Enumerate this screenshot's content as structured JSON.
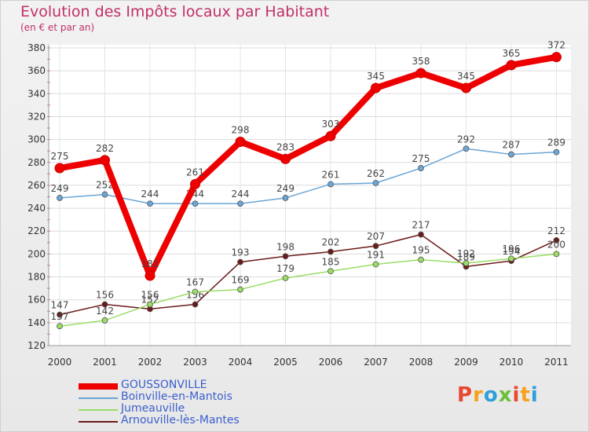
{
  "header": {
    "title": "Evolution des Impôts locaux par Habitant",
    "subtitle": "(en € et par an)"
  },
  "logo": {
    "text": "Proxiti",
    "colors": [
      "#e8482f",
      "#f7a11a",
      "#2e9fd9",
      "#6cbf3a",
      "#e8482f",
      "#f7a11a",
      "#2e9fd9"
    ]
  },
  "chart_data": {
    "type": "line",
    "title": "Evolution des Impôts locaux par Habitant",
    "subtitle": "(en € et par an)",
    "xlabel": "",
    "ylabel": "",
    "ylim": [
      120,
      380
    ],
    "y_ticks": [
      120,
      140,
      160,
      180,
      200,
      220,
      240,
      260,
      280,
      300,
      320,
      340,
      360,
      380
    ],
    "grid": true,
    "categories": [
      "2000",
      "2001",
      "2002",
      "2003",
      "2004",
      "2005",
      "2006",
      "2007",
      "2008",
      "2009",
      "2010",
      "2011"
    ],
    "series": [
      {
        "name": "Arnouville-lès-Mantes",
        "color": "#6b1a1a",
        "values": [
          147,
          156,
          152,
          156,
          193,
          198,
          202,
          207,
          217,
          189,
          194,
          212
        ]
      },
      {
        "name": "Jumeauville",
        "color": "#99dd66",
        "values": [
          137,
          142,
          156,
          167,
          169,
          179,
          185,
          191,
          195,
          192,
          196,
          200
        ]
      },
      {
        "name": "Boinville-en-Mantois",
        "color": "#6aa6d6",
        "values": [
          249,
          252,
          244,
          244,
          244,
          249,
          261,
          262,
          275,
          292,
          287,
          289
        ]
      },
      {
        "name": "GOUSSONVILLE",
        "color": "#ee0000",
        "values": [
          275,
          282,
          181,
          261,
          298,
          283,
          303,
          345,
          358,
          345,
          365,
          372
        ]
      }
    ],
    "legend_order": [
      "GOUSSONVILLE",
      "Boinville-en-Mantois",
      "Jumeauville",
      "Arnouville-lès-Mantes"
    ],
    "legend_position": "bottom-left"
  }
}
